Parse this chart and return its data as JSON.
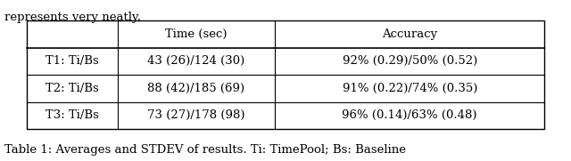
{
  "header_text": "represents very neatly.",
  "col_headers": [
    "",
    "Time (sec)",
    "Accuracy"
  ],
  "rows": [
    [
      "T1: Ti/Bs",
      "43 (26)/124 (30)",
      "92% (0.29)/50% (0.52)"
    ],
    [
      "T2: Ti/Bs",
      "88 (42)/185 (69)",
      "91% (0.22)/74% (0.35)"
    ],
    [
      "T3: Ti/Bs",
      "73 (27)/178 (98)",
      "96% (0.14)/63% (0.48)"
    ]
  ],
  "caption": "Table 1: Averages and STDEV of results. Ti: TimePool; Bs: Baseline",
  "fig_width": 6.4,
  "fig_height": 1.81,
  "background": "#ffffff",
  "font_size": 9.5,
  "caption_font_size": 9.5,
  "header_font_size": 9.5
}
